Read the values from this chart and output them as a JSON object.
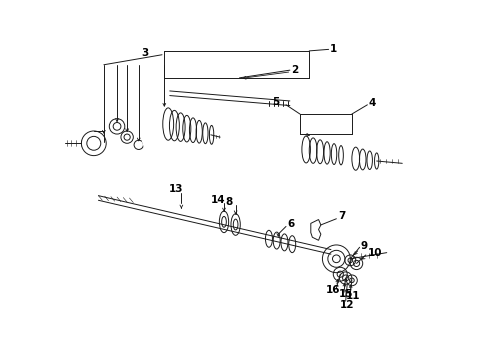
{
  "bg": "#ffffff",
  "lc": "#1a1a1a",
  "lw": 0.7,
  "fig_w": 4.9,
  "fig_h": 3.6,
  "dpi": 100,
  "label_fs": 7.5,
  "leader_lw": 0.6
}
